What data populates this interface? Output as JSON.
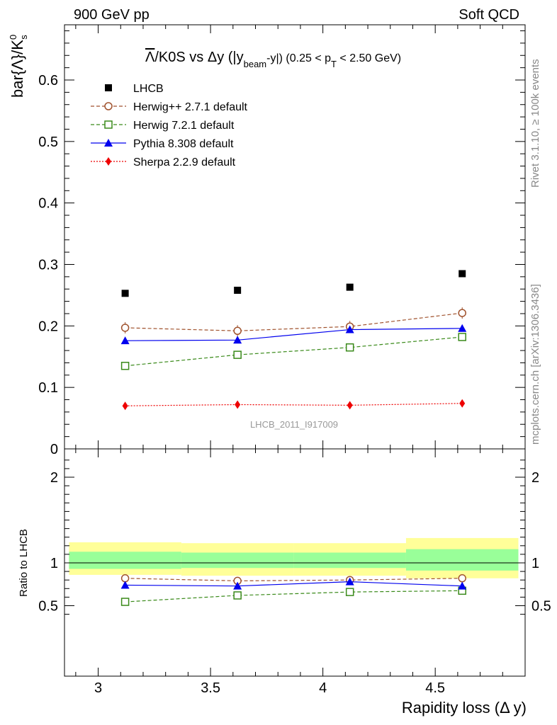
{
  "header": {
    "left": "900 GeV pp",
    "right": "Soft QCD"
  },
  "side_labels": {
    "rivet": "Rivet 3.1.10, ≥ 100k events",
    "mcplots": "mcplots.cern.ch [arXiv:1306.3436]"
  },
  "watermark": "LHCB_2011_I917009",
  "chart_data": [
    {
      "type": "scatter",
      "title_parts": {
        "lead": "Λ",
        "main": "/K0S vs Δy (|y",
        "sub1": "beam",
        "mid": "-y|) (0.25 < p",
        "sub2": "T",
        "tail": " < 2.50 GeV)"
      },
      "ylabel_parts": {
        "main": "bar{Λ}/K",
        "sup": "0",
        "sub": "s"
      },
      "xlabel": "Rapidity loss (Δ y)",
      "xlim": [
        2.85,
        4.9
      ],
      "ylim": [
        0,
        0.7
      ],
      "x": [
        3.12,
        3.62,
        4.12,
        4.62
      ],
      "x_ticks": [
        "3",
        "3.5",
        "4",
        "4.5"
      ],
      "y_ticks": [
        "0",
        "0.1",
        "0.2",
        "0.3",
        "0.4",
        "0.5",
        "0.6"
      ],
      "legend_position": "top-left",
      "series": [
        {
          "name": "LHCB",
          "style": "data",
          "color": "#000000",
          "marker": "square",
          "values": [
            0.253,
            0.258,
            0.263,
            0.285
          ]
        },
        {
          "name": "Herwig++ 2.7.1 default",
          "style": "dashed",
          "color": "#a0522d",
          "marker": "open-circle",
          "values": [
            0.197,
            0.192,
            0.199,
            0.221
          ]
        },
        {
          "name": "Herwig 7.2.1 default",
          "style": "dashed",
          "color": "#3a8a1a",
          "marker": "open-square",
          "values": [
            0.135,
            0.153,
            0.165,
            0.182
          ]
        },
        {
          "name": "Pythia 8.308 default",
          "style": "solid",
          "color": "#0000ee",
          "marker": "triangle",
          "values": [
            0.176,
            0.177,
            0.194,
            0.196
          ]
        },
        {
          "name": "Sherpa 2.2.9 default",
          "style": "dotted",
          "color": "#ee0000",
          "marker": "diamond",
          "values": [
            0.07,
            0.072,
            0.071,
            0.074
          ]
        }
      ]
    },
    {
      "type": "line",
      "ylabel": "Ratio to LHCB",
      "xlabel": "Rapidity loss (Δ y)",
      "xlim": [
        2.85,
        4.9
      ],
      "ylim": [
        0.35,
        2.3
      ],
      "x": [
        3.12,
        3.62,
        4.12,
        4.62
      ],
      "y_ticks": [
        "0.5",
        "1",
        "2"
      ],
      "bands": {
        "bin_edges": [
          2.87,
          3.37,
          3.87,
          4.37,
          4.87
        ],
        "outer": [
          [
            0.86,
            1.24
          ],
          [
            0.85,
            1.23
          ],
          [
            0.85,
            1.23
          ],
          [
            0.82,
            1.29
          ]
        ],
        "inner": [
          [
            0.93,
            1.13
          ],
          [
            0.94,
            1.12
          ],
          [
            0.94,
            1.12
          ],
          [
            0.91,
            1.16
          ]
        ],
        "outer_color": "#ffff99",
        "inner_color": "#99ff99"
      },
      "series": [
        {
          "name": "Herwig++ 2.7.1 default",
          "color": "#a0522d",
          "style": "dashed",
          "marker": "open-circle",
          "values": [
            0.82,
            0.79,
            0.8,
            0.82
          ]
        },
        {
          "name": "Herwig 7.2.1 default",
          "color": "#3a8a1a",
          "style": "dashed",
          "marker": "open-square",
          "values": [
            0.545,
            0.62,
            0.66,
            0.675
          ]
        },
        {
          "name": "Pythia 8.308 default",
          "color": "#0000ee",
          "style": "solid",
          "marker": "triangle",
          "values": [
            0.74,
            0.73,
            0.78,
            0.73
          ]
        }
      ]
    }
  ]
}
